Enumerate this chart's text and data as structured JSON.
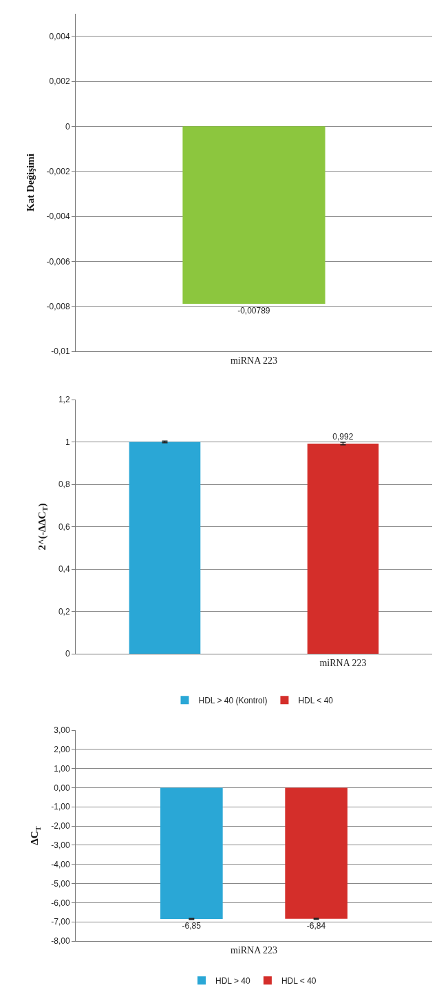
{
  "chart_data": [
    {
      "type": "bar",
      "ylabel": "Kat Değişimi",
      "categories": [
        "miRNA 223"
      ],
      "series": [
        {
          "color": "#8cc63e",
          "values": [
            -0.00789
          ],
          "value_labels": [
            "-0,00789"
          ]
        }
      ],
      "ylim": [
        -0.01,
        0.005
      ],
      "yticks": [
        {
          "value": -0.01,
          "label": "-0,01"
        },
        {
          "value": -0.008,
          "label": "-0,008"
        },
        {
          "value": -0.006,
          "label": "-0,006"
        },
        {
          "value": -0.004,
          "label": "-0,004"
        },
        {
          "value": -0.002,
          "label": "-0,002"
        },
        {
          "value": 0,
          "label": "0"
        },
        {
          "value": 0.002,
          "label": "0,002"
        },
        {
          "value": 0.004,
          "label": "0,004"
        }
      ],
      "grid": "y",
      "legend": false
    },
    {
      "type": "bar",
      "ylabel": "2^(-ΔΔC$_{T}$)",
      "categories": [
        null,
        "miRNA 223"
      ],
      "series": [
        {
          "name": "HDL > 40 (Kontrol)",
          "color": "#2aa7d6",
          "values": [
            1.0,
            null
          ],
          "errors": [
            0.004,
            null
          ],
          "value_labels": [
            null,
            null
          ]
        },
        {
          "name": "HDL < 40",
          "color": "#d42e2a",
          "values": [
            null,
            0.992
          ],
          "errors": [
            null,
            0.006
          ],
          "value_labels": [
            null,
            "0,992"
          ]
        }
      ],
      "ylim": [
        0,
        1.2
      ],
      "yticks": [
        {
          "value": 0,
          "label": "0"
        },
        {
          "value": 0.2,
          "label": "0,2"
        },
        {
          "value": 0.4,
          "label": "0,4"
        },
        {
          "value": 0.6,
          "label": "0,6"
        },
        {
          "value": 0.8,
          "label": "0,8"
        },
        {
          "value": 1,
          "label": "1"
        },
        {
          "value": 1.2,
          "label": "1,2"
        }
      ],
      "grid": "y",
      "legend": "bottom"
    },
    {
      "type": "bar",
      "ylabel": "ΔC$_{T}$",
      "categories": [
        "miRNA 223"
      ],
      "series": [
        {
          "name": "HDL > 40",
          "color": "#2aa7d6",
          "values": [
            -6.85
          ],
          "errors": [
            0.03
          ],
          "value_labels": [
            "-6,85"
          ]
        },
        {
          "name": "HDL < 40",
          "color": "#d42e2a",
          "values": [
            -6.84
          ],
          "errors": [
            0.03
          ],
          "value_labels": [
            "-6,84"
          ]
        }
      ],
      "ylim": [
        -8,
        3
      ],
      "yticks": [
        {
          "value": -8,
          "label": "-8,00"
        },
        {
          "value": -7,
          "label": "-7,00"
        },
        {
          "value": -6,
          "label": "-6,00"
        },
        {
          "value": -5,
          "label": "-5,00"
        },
        {
          "value": -4,
          "label": "-4,00"
        },
        {
          "value": -3,
          "label": "-3,00"
        },
        {
          "value": -2,
          "label": "-2,00"
        },
        {
          "value": -1,
          "label": "-1,00"
        },
        {
          "value": 0,
          "label": "0,00"
        },
        {
          "value": 1,
          "label": "1,00"
        },
        {
          "value": 2,
          "label": "2,00"
        },
        {
          "value": 3,
          "label": "3,00"
        }
      ],
      "grid": "y",
      "legend": "bottom"
    }
  ]
}
